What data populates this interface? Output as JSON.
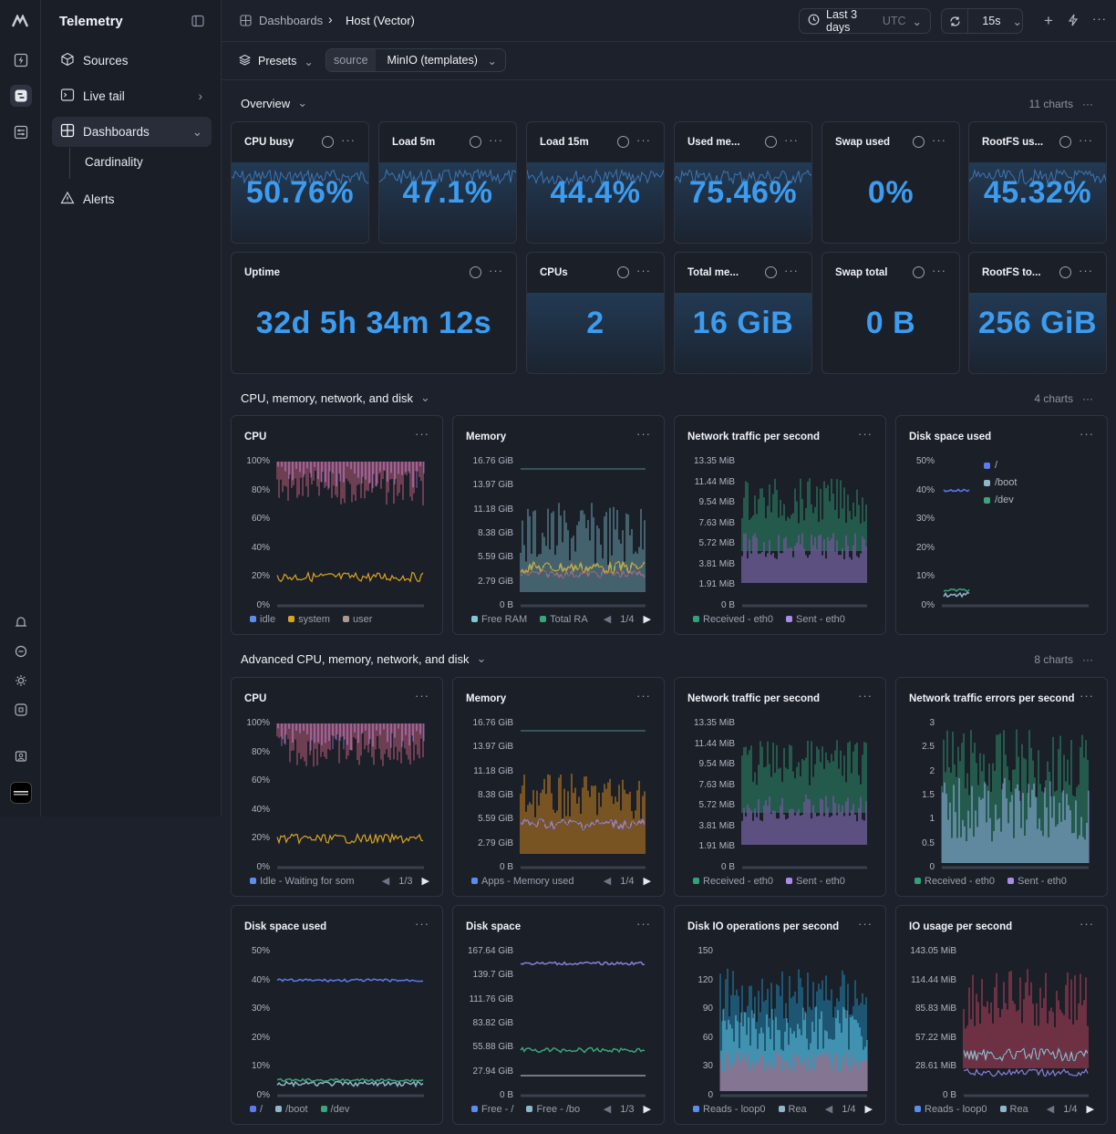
{
  "app": {
    "title": "Telemetry"
  },
  "sidebar": {
    "items": [
      {
        "label": "Sources"
      },
      {
        "label": "Live tail"
      },
      {
        "label": "Dashboards"
      }
    ],
    "sub_item": "Cardinality",
    "alerts": "Alerts"
  },
  "header": {
    "breadcrumb_root": "Dashboards",
    "breadcrumb_current": "Host (Vector)",
    "time_range": "Last 3 days",
    "time_zone": "UTC",
    "refresh": "15s"
  },
  "toolbar": {
    "presets": "Presets",
    "source_key": "source",
    "source_value": "MinIO (templates)"
  },
  "sections": {
    "overview": {
      "title": "Overview",
      "count": "11 charts"
    },
    "cpu": {
      "title": "CPU, memory, network, and disk",
      "count": "4 charts"
    },
    "adv": {
      "title": "Advanced CPU, memory, network, and disk",
      "count": "8 charts"
    }
  },
  "stats": [
    {
      "title": "CPU busy",
      "value": "50.76%"
    },
    {
      "title": "Load 5m",
      "value": "47.1%"
    },
    {
      "title": "Load 15m",
      "value": "44.4%"
    },
    {
      "title": "Used me...",
      "value": "75.46%"
    },
    {
      "title": "Swap used",
      "value": "0%"
    },
    {
      "title": "RootFS us...",
      "value": "45.32%"
    },
    {
      "title": "Uptime",
      "value": "32d 5h 34m 12s"
    },
    {
      "title": "CPUs",
      "value": "2"
    },
    {
      "title": "Total me...",
      "value": "16 GiB"
    },
    {
      "title": "Swap total",
      "value": "0 B"
    },
    {
      "title": "RootFS to...",
      "value": "256 GiB"
    }
  ],
  "charts": [
    {
      "title": "CPU",
      "yticks": [
        "100%",
        "80%",
        "60%",
        "40%",
        "20%",
        "0%"
      ],
      "legend": [
        [
          "idle",
          "#5b8def"
        ],
        [
          "system",
          "#d9a521"
        ],
        [
          "user",
          "#a89a8f"
        ]
      ],
      "pager": ""
    },
    {
      "title": "Memory",
      "yticks": [
        "16.76 GiB",
        "13.97 GiB",
        "11.18 GiB",
        "8.38 GiB",
        "5.59 GiB",
        "2.79 GiB",
        "0 B"
      ],
      "legend": [
        [
          "Free RAM",
          "#7fc8d8"
        ],
        [
          "Total RA",
          "#3aa57a"
        ]
      ],
      "pager": "1/4"
    },
    {
      "title": "Network traffic per second",
      "yticks": [
        "13.35 MiB",
        "11.44 MiB",
        "9.54 MiB",
        "7.63 MiB",
        "5.72 MiB",
        "3.81 MiB",
        "1.91 MiB",
        "0 B"
      ],
      "legend": [
        [
          "Received - eth0",
          "#2ea37a"
        ],
        [
          "Sent - eth0",
          "#a98bea"
        ]
      ],
      "pager": ""
    },
    {
      "title": "Disk space used",
      "yticks": [
        "50%",
        "40%",
        "30%",
        "20%",
        "10%",
        "0%"
      ],
      "legend": [],
      "side_legend": [
        [
          "/",
          "#5b7bef"
        ],
        [
          "/boot",
          "#8fb7c9"
        ],
        [
          "/dev",
          "#3aa57a"
        ]
      ],
      "pager": ""
    },
    {
      "title": "CPU",
      "yticks": [
        "100%",
        "80%",
        "60%",
        "40%",
        "20%",
        "0%"
      ],
      "legend": [
        [
          "Idle - Waiting for som",
          "#5b8def"
        ]
      ],
      "pager": "1/3"
    },
    {
      "title": "Memory",
      "yticks": [
        "16.76 GiB",
        "13.97 GiB",
        "11.18 GiB",
        "8.38 GiB",
        "5.59 GiB",
        "2.79 GiB",
        "0 B"
      ],
      "legend": [
        [
          "Apps - Memory used",
          "#5b8def"
        ]
      ],
      "pager": "1/4"
    },
    {
      "title": "Network traffic per second",
      "yticks": [
        "13.35 MiB",
        "11.44 MiB",
        "9.54 MiB",
        "7.63 MiB",
        "5.72 MiB",
        "3.81 MiB",
        "1.91 MiB",
        "0 B"
      ],
      "legend": [
        [
          "Received - eth0",
          "#2ea37a"
        ],
        [
          "Sent - eth0",
          "#a98bea"
        ]
      ],
      "pager": ""
    },
    {
      "title": "Network traffic errors per second",
      "yticks": [
        "3",
        "2.5",
        "2",
        "1.5",
        "1",
        "0.5",
        "0"
      ],
      "legend": [
        [
          "Received - eth0",
          "#2ea37a"
        ],
        [
          "Sent - eth0",
          "#a98bea"
        ]
      ],
      "pager": ""
    },
    {
      "title": "Disk space used",
      "yticks": [
        "50%",
        "40%",
        "30%",
        "20%",
        "10%",
        "0%"
      ],
      "legend": [
        [
          "/",
          "#5b7bef"
        ],
        [
          "/boot",
          "#8fb7c9"
        ],
        [
          "/dev",
          "#3aa57a"
        ]
      ],
      "pager": ""
    },
    {
      "title": "Disk space",
      "yticks": [
        "167.64 GiB",
        "139.7 GiB",
        "111.76 GiB",
        "83.82 GiB",
        "55.88 GiB",
        "27.94 GiB",
        "0 B"
      ],
      "legend": [
        [
          "Free - /",
          "#5b8def"
        ],
        [
          "Free - /bo",
          "#8fb7c9"
        ]
      ],
      "pager": "1/3"
    },
    {
      "title": "Disk IO operations per second",
      "yticks": [
        "150",
        "120",
        "90",
        "60",
        "30",
        "0"
      ],
      "legend": [
        [
          "Reads - loop0",
          "#5b8def"
        ],
        [
          "Rea",
          "#8fb7c9"
        ]
      ],
      "pager": "1/4"
    },
    {
      "title": "IO usage per second",
      "yticks": [
        "143.05 MiB",
        "114.44 MiB",
        "85.83 MiB",
        "57.22 MiB",
        "28.61 MiB",
        "0 B"
      ],
      "legend": [
        [
          "Reads - loop0",
          "#5b8def"
        ],
        [
          "Rea",
          "#8fb7c9"
        ]
      ],
      "pager": "1/4"
    }
  ]
}
